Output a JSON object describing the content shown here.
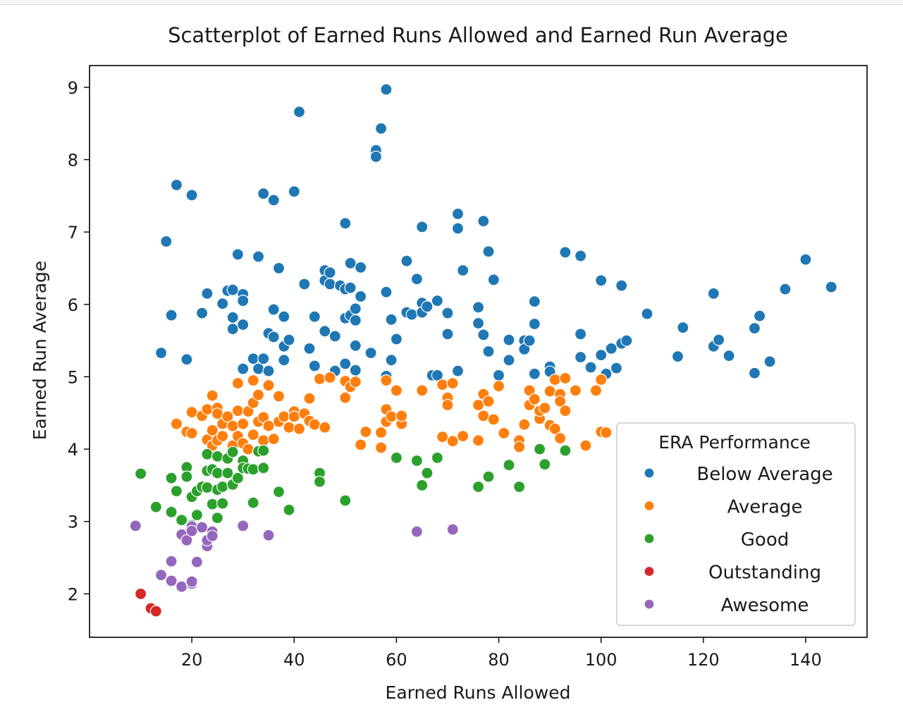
{
  "chart_data": {
    "type": "scatter",
    "title": "Scatterplot of Earned Runs Allowed and Earned Run Average",
    "xlabel": "Earned Runs Allowed",
    "ylabel": "Earned Run Average",
    "xlim": [
      0,
      152
    ],
    "ylim": [
      1.4,
      9.3
    ],
    "xticks": [
      20,
      40,
      60,
      80,
      100,
      120,
      140
    ],
    "yticks": [
      2,
      3,
      4,
      5,
      6,
      7,
      8,
      9
    ],
    "grid": false,
    "legend": {
      "title": "ERA Performance",
      "placement": "lower-right"
    },
    "series": [
      {
        "name": "Below Average",
        "color": "#1f77b4",
        "points": [
          [
            15,
            6.87
          ],
          [
            17,
            7.65
          ],
          [
            20,
            7.51
          ],
          [
            14,
            5.33
          ],
          [
            16,
            5.85
          ],
          [
            19,
            5.24
          ],
          [
            22,
            5.88
          ],
          [
            23,
            6.15
          ],
          [
            26,
            6.01
          ],
          [
            27,
            6.19
          ],
          [
            28,
            6.2
          ],
          [
            29,
            6.69
          ],
          [
            28,
            5.82
          ],
          [
            28,
            5.66
          ],
          [
            30,
            6.14
          ],
          [
            30,
            6.05
          ],
          [
            30,
            5.72
          ],
          [
            30,
            5.11
          ],
          [
            32,
            5.25
          ],
          [
            33,
            6.66
          ],
          [
            33,
            5.11
          ],
          [
            34,
            7.53
          ],
          [
            34,
            5.25
          ],
          [
            35,
            5.6
          ],
          [
            35,
            5.08
          ],
          [
            36,
            7.44
          ],
          [
            36,
            5.93
          ],
          [
            36,
            5.55
          ],
          [
            37,
            6.5
          ],
          [
            38,
            5.83
          ],
          [
            38,
            5.42
          ],
          [
            38,
            5.23
          ],
          [
            39,
            5.51
          ],
          [
            40,
            7.56
          ],
          [
            41,
            8.66
          ],
          [
            42,
            6.28
          ],
          [
            43,
            5.39
          ],
          [
            44,
            5.83
          ],
          [
            44,
            5.15
          ],
          [
            46,
            6.47
          ],
          [
            46,
            6.33
          ],
          [
            46,
            5.63
          ],
          [
            47,
            6.44
          ],
          [
            47,
            6.28
          ],
          [
            48,
            5.56
          ],
          [
            48,
            5.08
          ],
          [
            49,
            6.26
          ],
          [
            50,
            7.12
          ],
          [
            50,
            6.21
          ],
          [
            50,
            5.81
          ],
          [
            50,
            5.18
          ],
          [
            51,
            6.57
          ],
          [
            51,
            6.23
          ],
          [
            51,
            5.85
          ],
          [
            52,
            5.94
          ],
          [
            52,
            5.78
          ],
          [
            52,
            5.43
          ],
          [
            52,
            5.09
          ],
          [
            53,
            6.51
          ],
          [
            53,
            6.11
          ],
          [
            55,
            5.33
          ],
          [
            56,
            8.13
          ],
          [
            56,
            8.04
          ],
          [
            57,
            8.43
          ],
          [
            58,
            8.97
          ],
          [
            58,
            6.17
          ],
          [
            58,
            5.01
          ],
          [
            59,
            5.79
          ],
          [
            59,
            5.23
          ],
          [
            60,
            5.52
          ],
          [
            62,
            6.6
          ],
          [
            62,
            5.89
          ],
          [
            63,
            5.86
          ],
          [
            64,
            6.35
          ],
          [
            65,
            7.07
          ],
          [
            65,
            6.02
          ],
          [
            65,
            5.89
          ],
          [
            66,
            5.97
          ],
          [
            67,
            5.02
          ],
          [
            68,
            5.02
          ],
          [
            68,
            6.05
          ],
          [
            70,
            5.88
          ],
          [
            70,
            5.59
          ],
          [
            72,
            7.25
          ],
          [
            72,
            7.05
          ],
          [
            72,
            5.08
          ],
          [
            73,
            6.47
          ],
          [
            76,
            5.96
          ],
          [
            76,
            5.74
          ],
          [
            77,
            7.15
          ],
          [
            77,
            5.58
          ],
          [
            78,
            6.73
          ],
          [
            78,
            5.35
          ],
          [
            79,
            6.34
          ],
          [
            80,
            5.02
          ],
          [
            82,
            5.51
          ],
          [
            82,
            5.23
          ],
          [
            85,
            5.5
          ],
          [
            85,
            5.38
          ],
          [
            86,
            5.5
          ],
          [
            87,
            6.04
          ],
          [
            87,
            5.73
          ],
          [
            87,
            5.04
          ],
          [
            90,
            5.14
          ],
          [
            90,
            5.07
          ],
          [
            93,
            6.72
          ],
          [
            96,
            6.67
          ],
          [
            96,
            5.59
          ],
          [
            96,
            5.27
          ],
          [
            98,
            5.13
          ],
          [
            100,
            6.33
          ],
          [
            100,
            5.3
          ],
          [
            101,
            5.04
          ],
          [
            102,
            5.39
          ],
          [
            103,
            5.12
          ],
          [
            104,
            6.26
          ],
          [
            104,
            5.46
          ],
          [
            105,
            5.5
          ],
          [
            109,
            5.87
          ],
          [
            115,
            5.28
          ],
          [
            116,
            5.68
          ],
          [
            122,
            6.15
          ],
          [
            122,
            5.42
          ],
          [
            123,
            5.51
          ],
          [
            125,
            5.29
          ],
          [
            130,
            5.67
          ],
          [
            130,
            5.05
          ],
          [
            131,
            5.84
          ],
          [
            133,
            5.21
          ],
          [
            136,
            6.21
          ],
          [
            140,
            6.62
          ],
          [
            145,
            6.24
          ]
        ]
      },
      {
        "name": "Average",
        "color": "#ff7f0e",
        "points": [
          [
            17,
            4.35
          ],
          [
            19,
            4.24
          ],
          [
            20,
            4.51
          ],
          [
            20,
            4.22
          ],
          [
            22,
            4.46
          ],
          [
            23,
            4.55
          ],
          [
            23,
            4.13
          ],
          [
            24,
            4.74
          ],
          [
            24,
            4.26
          ],
          [
            24,
            4.05
          ],
          [
            25,
            4.57
          ],
          [
            25,
            4.49
          ],
          [
            25,
            4.12
          ],
          [
            26,
            4.35
          ],
          [
            26,
            4.18
          ],
          [
            27,
            4.45
          ],
          [
            28,
            4.32
          ],
          [
            28,
            4.05
          ],
          [
            29,
            4.91
          ],
          [
            29,
            4.53
          ],
          [
            29,
            4.18
          ],
          [
            30,
            4.35
          ],
          [
            30,
            4.08
          ],
          [
            31,
            4.52
          ],
          [
            31,
            4.0
          ],
          [
            32,
            4.95
          ],
          [
            32,
            4.64
          ],
          [
            32,
            4.2
          ],
          [
            33,
            4.75
          ],
          [
            33,
            4.38
          ],
          [
            34,
            4.12
          ],
          [
            34,
            4.44
          ],
          [
            35,
            4.88
          ],
          [
            35,
            4.32
          ],
          [
            36,
            4.14
          ],
          [
            37,
            4.73
          ],
          [
            37,
            4.38
          ],
          [
            38,
            4.45
          ],
          [
            39,
            4.3
          ],
          [
            40,
            4.52
          ],
          [
            40,
            4.45
          ],
          [
            41,
            4.28
          ],
          [
            42,
            4.49
          ],
          [
            43,
            4.7
          ],
          [
            43,
            4.39
          ],
          [
            44,
            4.34
          ],
          [
            45,
            4.97
          ],
          [
            46,
            4.3
          ],
          [
            47,
            4.99
          ],
          [
            50,
            4.94
          ],
          [
            50,
            4.71
          ],
          [
            51,
            4.86
          ],
          [
            52,
            4.93
          ],
          [
            53,
            4.06
          ],
          [
            54,
            4.24
          ],
          [
            57,
            4.02
          ],
          [
            57,
            4.23
          ],
          [
            58,
            4.95
          ],
          [
            58,
            4.55
          ],
          [
            58,
            4.38
          ],
          [
            59,
            4.45
          ],
          [
            60,
            4.81
          ],
          [
            61,
            4.35
          ],
          [
            61,
            4.46
          ],
          [
            65,
            4.81
          ],
          [
            69,
            4.89
          ],
          [
            69,
            4.17
          ],
          [
            70,
            4.71
          ],
          [
            70,
            4.61
          ],
          [
            71,
            4.11
          ],
          [
            71,
            4.91
          ],
          [
            73,
            4.18
          ],
          [
            76,
            4.61
          ],
          [
            76,
            4.12
          ],
          [
            77,
            4.76
          ],
          [
            77,
            4.46
          ],
          [
            78,
            4.66
          ],
          [
            79,
            4.41
          ],
          [
            80,
            4.87
          ],
          [
            81,
            4.22
          ],
          [
            84,
            4.12
          ],
          [
            84,
            4.03
          ],
          [
            85,
            4.34
          ],
          [
            86,
            4.81
          ],
          [
            86,
            4.61
          ],
          [
            87,
            4.69
          ],
          [
            88,
            4.42
          ],
          [
            88,
            4.53
          ],
          [
            89,
            4.57
          ],
          [
            90,
            4.8
          ],
          [
            90,
            4.33
          ],
          [
            91,
            4.28
          ],
          [
            91,
            4.96
          ],
          [
            92,
            4.76
          ],
          [
            92,
            4.66
          ],
          [
            92,
            4.15
          ],
          [
            93,
            4.53
          ],
          [
            93,
            4.98
          ],
          [
            95,
            4.81
          ],
          [
            97,
            4.05
          ],
          [
            99,
            4.81
          ],
          [
            100,
            4.96
          ],
          [
            100,
            4.24
          ],
          [
            101,
            4.23
          ]
        ]
      },
      {
        "name": "Good",
        "color": "#2ca02c",
        "points": [
          [
            10,
            3.66
          ],
          [
            13,
            3.2
          ],
          [
            16,
            3.6
          ],
          [
            16,
            3.13
          ],
          [
            17,
            3.42
          ],
          [
            18,
            3.02
          ],
          [
            19,
            3.75
          ],
          [
            19,
            3.62
          ],
          [
            20,
            3.34
          ],
          [
            20,
            2.95
          ],
          [
            21,
            3.42
          ],
          [
            21,
            3.09
          ],
          [
            22,
            3.48
          ],
          [
            23,
            3.93
          ],
          [
            23,
            3.7
          ],
          [
            23,
            3.47
          ],
          [
            24,
            3.72
          ],
          [
            24,
            3.24
          ],
          [
            25,
            3.9
          ],
          [
            25,
            3.67
          ],
          [
            25,
            3.44
          ],
          [
            25,
            3.05
          ],
          [
            26,
            3.48
          ],
          [
            26,
            3.25
          ],
          [
            27,
            3.87
          ],
          [
            27,
            3.67
          ],
          [
            28,
            3.96
          ],
          [
            28,
            3.51
          ],
          [
            29,
            3.6
          ],
          [
            30,
            3.84
          ],
          [
            30,
            3.74
          ],
          [
            31,
            3.73
          ],
          [
            32,
            3.72
          ],
          [
            32,
            3.26
          ],
          [
            33,
            3.97
          ],
          [
            34,
            3.74
          ],
          [
            34,
            3.98
          ],
          [
            37,
            3.41
          ],
          [
            39,
            3.16
          ],
          [
            45,
            3.67
          ],
          [
            45,
            3.55
          ],
          [
            50,
            3.29
          ],
          [
            60,
            3.88
          ],
          [
            64,
            3.84
          ],
          [
            65,
            3.5
          ],
          [
            66,
            3.67
          ],
          [
            68,
            3.88
          ],
          [
            76,
            3.48
          ],
          [
            78,
            3.62
          ],
          [
            82,
            3.78
          ],
          [
            84,
            3.48
          ],
          [
            88,
            4.0
          ],
          [
            89,
            3.79
          ],
          [
            93,
            3.98
          ]
        ]
      },
      {
        "name": "Outstanding",
        "color": "#d62728",
        "points": [
          [
            10,
            2.0
          ],
          [
            12,
            1.8
          ],
          [
            13,
            1.76
          ]
        ]
      },
      {
        "name": "Awesome",
        "color": "#9467bd",
        "points": [
          [
            9,
            2.94
          ],
          [
            14,
            2.26
          ],
          [
            16,
            2.45
          ],
          [
            16,
            2.18
          ],
          [
            18,
            2.82
          ],
          [
            18,
            2.1
          ],
          [
            19,
            2.74
          ],
          [
            20,
            2.93
          ],
          [
            20,
            2.87
          ],
          [
            20,
            2.14
          ],
          [
            20,
            2.17
          ],
          [
            21,
            2.44
          ],
          [
            22,
            2.92
          ],
          [
            23,
            2.66
          ],
          [
            23,
            2.74
          ],
          [
            24,
            2.86
          ],
          [
            24,
            2.8
          ],
          [
            30,
            2.94
          ],
          [
            35,
            2.81
          ],
          [
            64,
            2.86
          ],
          [
            71,
            2.89
          ]
        ]
      }
    ]
  }
}
